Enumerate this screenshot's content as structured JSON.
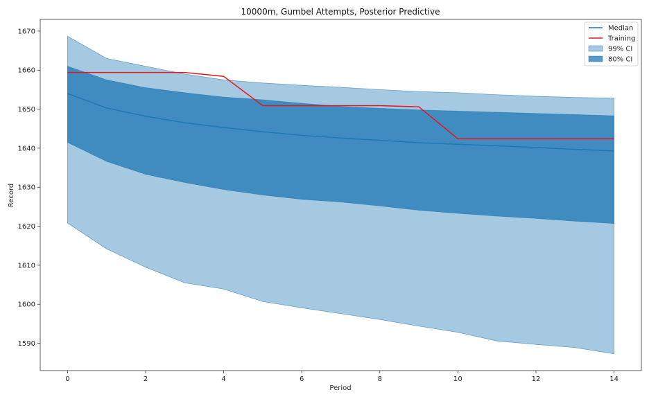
{
  "chart_data": {
    "type": "area",
    "title": "10000m, Gumbel Attempts, Posterior Predictive",
    "xlabel": "Period",
    "ylabel": "Record",
    "xlim": [
      -0.7,
      14.7
    ],
    "ylim": [
      1583,
      1673
    ],
    "xticks": [
      0,
      2,
      4,
      6,
      8,
      10,
      12,
      14
    ],
    "yticks": [
      1590,
      1600,
      1610,
      1620,
      1630,
      1640,
      1650,
      1660,
      1670
    ],
    "legend_position": "top-right",
    "x": [
      0,
      1,
      2,
      3,
      4,
      5,
      6,
      7,
      8,
      9,
      10,
      11,
      12,
      13,
      14
    ],
    "series": [
      {
        "name": "Median",
        "kind": "line",
        "color": "#1f77b4",
        "values": [
          1654.0,
          1650.3,
          1648.2,
          1646.5,
          1645.3,
          1644.2,
          1643.3,
          1642.6,
          1642.0,
          1641.4,
          1641.0,
          1640.6,
          1640.2,
          1639.7,
          1639.3
        ]
      },
      {
        "name": "Training",
        "kind": "line",
        "color": "#e8161b",
        "x": [
          0,
          3,
          4,
          5,
          6,
          7,
          8,
          9,
          10,
          11,
          12,
          13,
          14
        ],
        "values": [
          1659.4,
          1659.4,
          1658.4,
          1650.9,
          1650.9,
          1650.9,
          1650.9,
          1650.6,
          1642.4,
          1642.4,
          1642.4,
          1642.4,
          1642.4
        ]
      },
      {
        "name": "99% CI",
        "kind": "band",
        "color": "#1f77b4",
        "opacity": 0.4,
        "upper": [
          1668.7,
          1663.0,
          1661.0,
          1659.0,
          1657.5,
          1656.7,
          1656.1,
          1655.6,
          1655.0,
          1654.5,
          1654.2,
          1653.7,
          1653.3,
          1653.0,
          1652.8
        ],
        "lower": [
          1620.8,
          1614.2,
          1609.5,
          1605.5,
          1603.9,
          1600.7,
          1599.1,
          1597.6,
          1596.1,
          1594.4,
          1592.8,
          1590.6,
          1589.7,
          1588.9,
          1587.3
        ]
      },
      {
        "name": "80% CI",
        "kind": "band",
        "color": "#1f77b4",
        "opacity": 0.75,
        "upper": [
          1661.0,
          1657.5,
          1655.5,
          1654.2,
          1653.1,
          1652.4,
          1651.5,
          1650.7,
          1650.2,
          1649.8,
          1649.5,
          1649.2,
          1648.9,
          1648.6,
          1648.3
        ],
        "lower": [
          1641.5,
          1636.6,
          1633.3,
          1631.2,
          1629.4,
          1628.0,
          1626.9,
          1626.2,
          1625.2,
          1624.1,
          1623.3,
          1622.6,
          1622.0,
          1621.3,
          1620.7
        ]
      }
    ],
    "legend": [
      "Median",
      "Training",
      "99% CI",
      "80% CI"
    ]
  }
}
